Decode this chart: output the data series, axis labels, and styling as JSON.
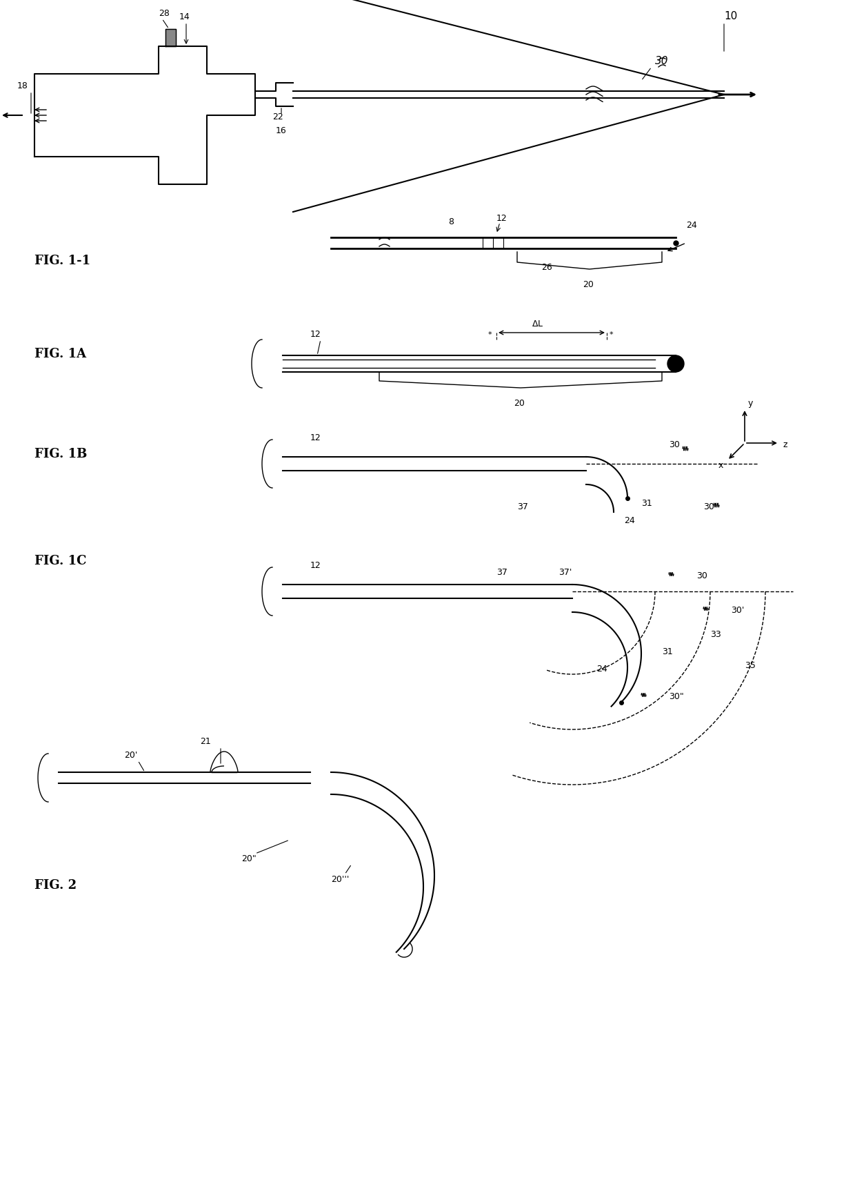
{
  "bg_color": "#ffffff",
  "line_color": "#000000",
  "fig_width": 12.4,
  "fig_height": 17.08,
  "labels": {
    "fig11": "FIG. 1-1",
    "fig1a": "FIG. 1A",
    "fig1b": "FIG. 1B",
    "fig1c": "FIG. 1C",
    "fig2": "FIG. 2"
  }
}
